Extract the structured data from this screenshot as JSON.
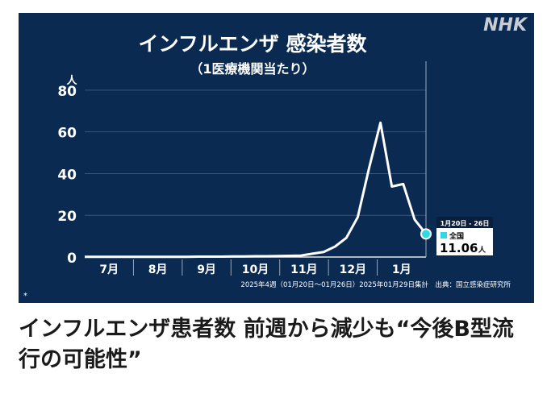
{
  "logo": "NHK",
  "headline": "インフルエンザ患者数 前週から減少も“今後B型流行の可能性”",
  "footnote_mark": "*",
  "source_note": "2025年4週（01月20日〜01月26日）2025年01月29日集計　出典：国立感染症研究所",
  "colors": {
    "panel_bg": "#0b2a52",
    "line": "#ffffff",
    "marker": "#33d6e6",
    "text": "#ffffff"
  },
  "chart_data": {
    "type": "line",
    "title": "インフルエンザ 感染者数",
    "subtitle": "（1医療機関当たり）",
    "ylabel": "人",
    "ylim": [
      0,
      90
    ],
    "yticks": [
      0,
      20,
      40,
      60,
      80
    ],
    "month_labels": [
      "7月",
      "8月",
      "9月",
      "10月",
      "11月",
      "12月",
      "1月"
    ],
    "grid": true,
    "series": [
      {
        "name": "全国",
        "x": [
          0,
          1,
          2,
          3,
          4,
          5,
          6,
          7,
          8,
          9,
          10,
          11,
          12,
          13,
          14,
          15,
          16,
          17,
          18,
          19,
          20,
          21,
          22,
          23,
          24,
          25,
          26,
          27,
          28,
          29
        ],
        "values": [
          0.1,
          0.1,
          0.1,
          0.1,
          0.1,
          0.1,
          0.1,
          0.1,
          0.1,
          0.1,
          0.2,
          0.2,
          0.2,
          0.3,
          0.3,
          0.4,
          0.4,
          0.5,
          0.6,
          0.7,
          1.6,
          2.4,
          5.0,
          9.2,
          19.1,
          42.7,
          64.4,
          33.8,
          35.0,
          18.0
        ]
      }
    ],
    "last_point": {
      "x": 30,
      "value": 11.06
    },
    "callout": {
      "period": "1月20日 - 26日",
      "series": "全国",
      "value": "11.06",
      "unit": "人"
    }
  }
}
